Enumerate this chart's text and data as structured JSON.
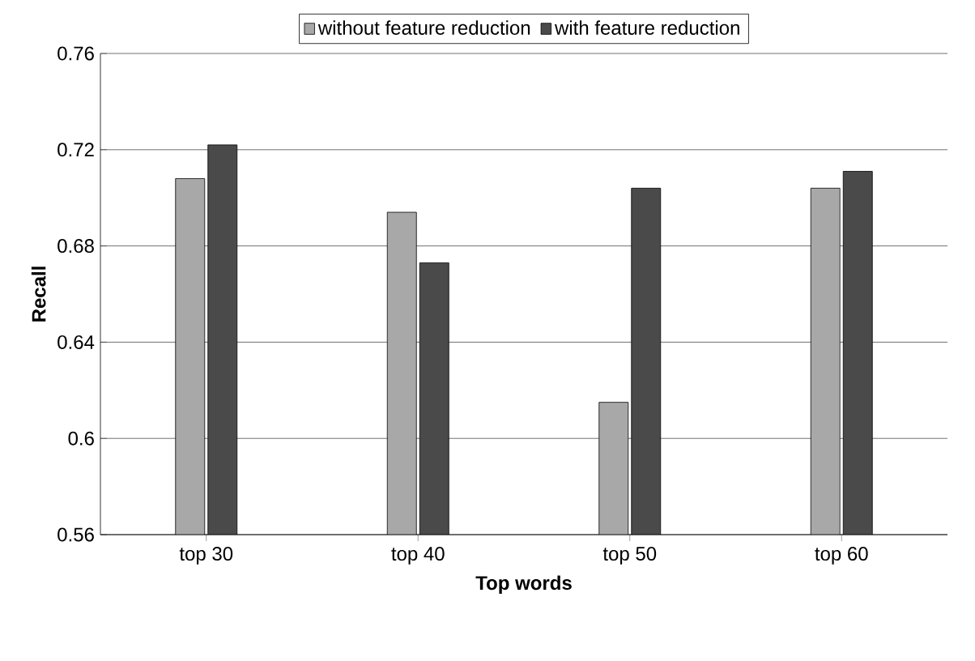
{
  "chart_data": {
    "type": "bar",
    "xlabel": "Top words",
    "ylabel": "Recall",
    "categories": [
      "top 30",
      "top 40",
      "top 50",
      "top 60"
    ],
    "series": [
      {
        "name": "without feature reduction",
        "color": "#a8a8a8",
        "values": [
          0.708,
          0.694,
          0.615,
          0.704
        ]
      },
      {
        "name": "with feature reduction",
        "color": "#4a4a4a",
        "values": [
          0.722,
          0.673,
          0.704,
          0.711
        ]
      }
    ],
    "ylim": [
      0.56,
      0.76
    ],
    "yticks": [
      0.56,
      0.6,
      0.64,
      0.68,
      0.72,
      0.76
    ],
    "grid": "y",
    "legend": "top"
  }
}
